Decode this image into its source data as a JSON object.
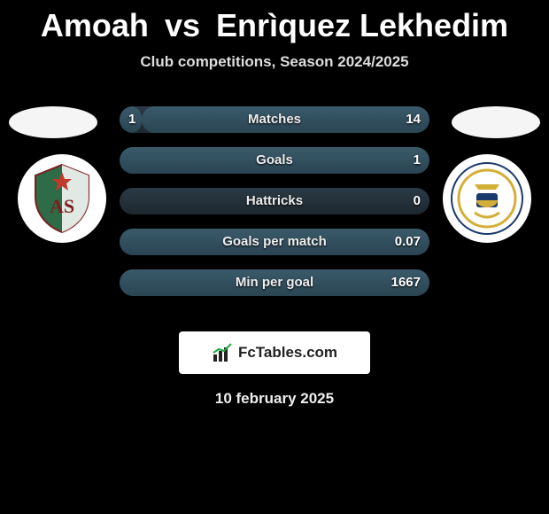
{
  "title": {
    "player1": "Amoah",
    "vs": "vs",
    "player2": "Enrìquez Lekhedim",
    "color": "#ffffff"
  },
  "subtitle": "Club competitions, Season 2024/2025",
  "avatars": {
    "left_color": "#f5f5f5",
    "right_color": "#f5f5f5"
  },
  "badges": {
    "left": {
      "bg": "#ffffff",
      "primary": "#2e6b47",
      "accent": "#c03a2b"
    },
    "right": {
      "bg": "#ffffff",
      "primary": "#d4af37",
      "accent": "#1a3a6e"
    }
  },
  "stats": {
    "row_bg_top": "#2b3a45",
    "row_bg_bottom": "#1d2830",
    "bar_top": "#3a5a6a",
    "bar_bottom": "#2a4452",
    "label_color": "#eeeeee",
    "value_color": "#ffffff",
    "rows": [
      {
        "label": "Matches",
        "left": "1",
        "right": "14",
        "left_pct": 7,
        "right_pct": 93
      },
      {
        "label": "Goals",
        "left": "",
        "right": "1",
        "left_pct": 0,
        "right_pct": 100
      },
      {
        "label": "Hattricks",
        "left": "",
        "right": "0",
        "left_pct": 0,
        "right_pct": 0
      },
      {
        "label": "Goals per match",
        "left": "",
        "right": "0.07",
        "left_pct": 0,
        "right_pct": 100
      },
      {
        "label": "Min per goal",
        "left": "",
        "right": "1667",
        "left_pct": 0,
        "right_pct": 100
      }
    ]
  },
  "brand": {
    "text": "FcTables.com",
    "box_bg": "#ffffff",
    "text_color": "#222222"
  },
  "date": "10 february 2025"
}
